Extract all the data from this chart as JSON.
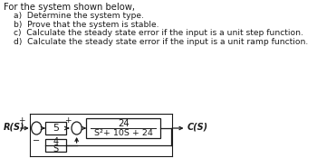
{
  "title_text": "For the system shown below,",
  "items": [
    "a)  Determine the system type.",
    "b)  Prove that the system is stable.",
    "c)  Calculate the steady state error if the input is a unit step function.",
    "d)  Calculate the steady state error if the input is a unit ramp function."
  ],
  "r_label": "R(S)",
  "c_label": "C(S)",
  "block1_text": "5",
  "block2_num": "24",
  "block2_den": "S²+ 10S + 24",
  "feedback_num": "4",
  "feedback_den": "S",
  "plus_sign": "+",
  "minus_sign": "−",
  "sum2_plus": "+",
  "bg_color": "#ffffff",
  "text_color": "#1a1a1a",
  "font_size_title": 7.2,
  "font_size_items": 6.6,
  "font_size_diagram": 7.0
}
